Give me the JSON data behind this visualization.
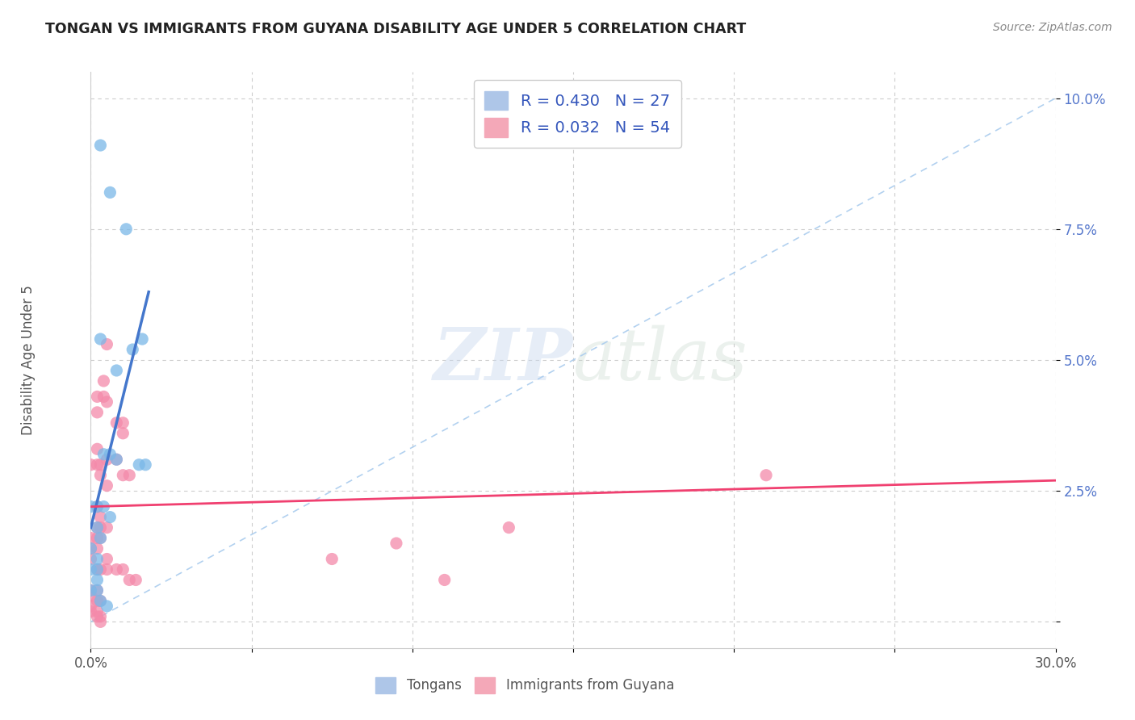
{
  "title": "TONGAN VS IMMIGRANTS FROM GUYANA DISABILITY AGE UNDER 5 CORRELATION CHART",
  "source": "Source: ZipAtlas.com",
  "ylabel": "Disability Age Under 5",
  "xlim": [
    0.0,
    0.3
  ],
  "ylim": [
    -0.005,
    0.105
  ],
  "legend_entries": [
    {
      "label": "R = 0.430   N = 27",
      "color": "#aec6e8"
    },
    {
      "label": "R = 0.032   N = 54",
      "color": "#f4a8b8"
    }
  ],
  "legend_labels": [
    "Tongans",
    "Immigrants from Guyana"
  ],
  "tongan_color": "#7ab8e8",
  "guyana_color": "#f48aaa",
  "tongan_scatter": [
    [
      0.003,
      0.091
    ],
    [
      0.006,
      0.082
    ],
    [
      0.011,
      0.075
    ],
    [
      0.003,
      0.054
    ],
    [
      0.008,
      0.048
    ],
    [
      0.013,
      0.052
    ],
    [
      0.016,
      0.054
    ],
    [
      0.004,
      0.032
    ],
    [
      0.006,
      0.032
    ],
    [
      0.008,
      0.031
    ],
    [
      0.015,
      0.03
    ],
    [
      0.017,
      0.03
    ],
    [
      0.0,
      0.022
    ],
    [
      0.002,
      0.022
    ],
    [
      0.004,
      0.022
    ],
    [
      0.006,
      0.02
    ],
    [
      0.002,
      0.018
    ],
    [
      0.003,
      0.016
    ],
    [
      0.0,
      0.014
    ],
    [
      0.002,
      0.012
    ],
    [
      0.0,
      0.01
    ],
    [
      0.002,
      0.01
    ],
    [
      0.002,
      0.008
    ],
    [
      0.0,
      0.006
    ],
    [
      0.002,
      0.006
    ],
    [
      0.003,
      0.004
    ],
    [
      0.005,
      0.003
    ]
  ],
  "guyana_scatter": [
    [
      0.005,
      0.053
    ],
    [
      0.004,
      0.046
    ],
    [
      0.002,
      0.043
    ],
    [
      0.004,
      0.043
    ],
    [
      0.005,
      0.042
    ],
    [
      0.002,
      0.04
    ],
    [
      0.008,
      0.038
    ],
    [
      0.01,
      0.038
    ],
    [
      0.01,
      0.036
    ],
    [
      0.002,
      0.033
    ],
    [
      0.005,
      0.031
    ],
    [
      0.008,
      0.031
    ],
    [
      0.0,
      0.03
    ],
    [
      0.002,
      0.03
    ],
    [
      0.003,
      0.03
    ],
    [
      0.003,
      0.028
    ],
    [
      0.005,
      0.026
    ],
    [
      0.01,
      0.028
    ],
    [
      0.012,
      0.028
    ],
    [
      0.002,
      0.022
    ],
    [
      0.003,
      0.02
    ],
    [
      0.002,
      0.018
    ],
    [
      0.003,
      0.018
    ],
    [
      0.005,
      0.018
    ],
    [
      0.0,
      0.016
    ],
    [
      0.002,
      0.016
    ],
    [
      0.003,
      0.016
    ],
    [
      0.0,
      0.014
    ],
    [
      0.002,
      0.014
    ],
    [
      0.0,
      0.012
    ],
    [
      0.005,
      0.012
    ],
    [
      0.002,
      0.01
    ],
    [
      0.003,
      0.01
    ],
    [
      0.005,
      0.01
    ],
    [
      0.008,
      0.01
    ],
    [
      0.01,
      0.01
    ],
    [
      0.012,
      0.008
    ],
    [
      0.014,
      0.008
    ],
    [
      0.0,
      0.006
    ],
    [
      0.002,
      0.006
    ],
    [
      0.0,
      0.005
    ],
    [
      0.002,
      0.004
    ],
    [
      0.003,
      0.004
    ],
    [
      0.0,
      0.003
    ],
    [
      0.002,
      0.002
    ],
    [
      0.0,
      0.002
    ],
    [
      0.002,
      0.001
    ],
    [
      0.003,
      0.001
    ],
    [
      0.003,
      0.0
    ],
    [
      0.21,
      0.028
    ],
    [
      0.13,
      0.018
    ],
    [
      0.095,
      0.015
    ],
    [
      0.075,
      0.012
    ],
    [
      0.11,
      0.008
    ]
  ],
  "tongan_trendline": {
    "x": [
      0.0,
      0.018
    ],
    "y": [
      0.018,
      0.063
    ]
  },
  "guyana_trendline": {
    "x": [
      0.0,
      0.3
    ],
    "y": [
      0.022,
      0.027
    ]
  },
  "dashed_line": {
    "x": [
      0.0,
      0.3
    ],
    "y": [
      0.0,
      0.1
    ]
  }
}
